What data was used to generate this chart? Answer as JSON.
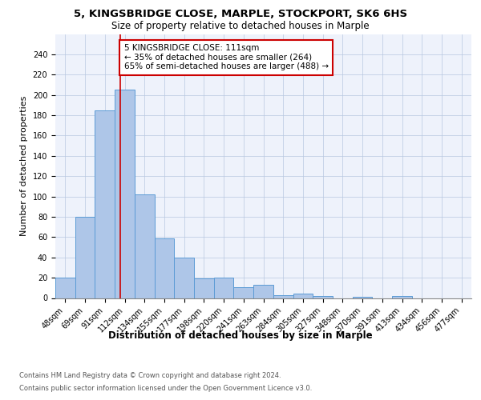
{
  "title1": "5, KINGSBRIDGE CLOSE, MARPLE, STOCKPORT, SK6 6HS",
  "title2": "Size of property relative to detached houses in Marple",
  "xlabel": "Distribution of detached houses by size in Marple",
  "ylabel": "Number of detached properties",
  "categories": [
    "48sqm",
    "69sqm",
    "91sqm",
    "112sqm",
    "134sqm",
    "155sqm",
    "177sqm",
    "198sqm",
    "220sqm",
    "241sqm",
    "263sqm",
    "284sqm",
    "305sqm",
    "327sqm",
    "348sqm",
    "370sqm",
    "391sqm",
    "413sqm",
    "434sqm",
    "456sqm",
    "477sqm"
  ],
  "values": [
    20,
    80,
    185,
    205,
    102,
    59,
    40,
    19,
    20,
    11,
    13,
    3,
    4,
    2,
    0,
    1,
    0,
    2,
    0,
    0,
    0
  ],
  "bar_color": "#aec6e8",
  "bar_edge_color": "#5b9bd5",
  "red_line_x": 2.78,
  "annotation_text": "5 KINGSBRIDGE CLOSE: 111sqm\n← 35% of detached houses are smaller (264)\n65% of semi-detached houses are larger (488) →",
  "annotation_box_color": "#ffffff",
  "annotation_box_edge_color": "#cc0000",
  "footer1": "Contains HM Land Registry data © Crown copyright and database right 2024.",
  "footer2": "Contains public sector information licensed under the Open Government Licence v3.0.",
  "ylim": [
    0,
    260
  ],
  "title1_fontsize": 9.5,
  "title2_fontsize": 8.5,
  "xlabel_fontsize": 8.5,
  "ylabel_fontsize": 8,
  "tick_fontsize": 7,
  "annotation_fontsize": 7.5,
  "footer_fontsize": 6,
  "background_color": "#eef2fb"
}
